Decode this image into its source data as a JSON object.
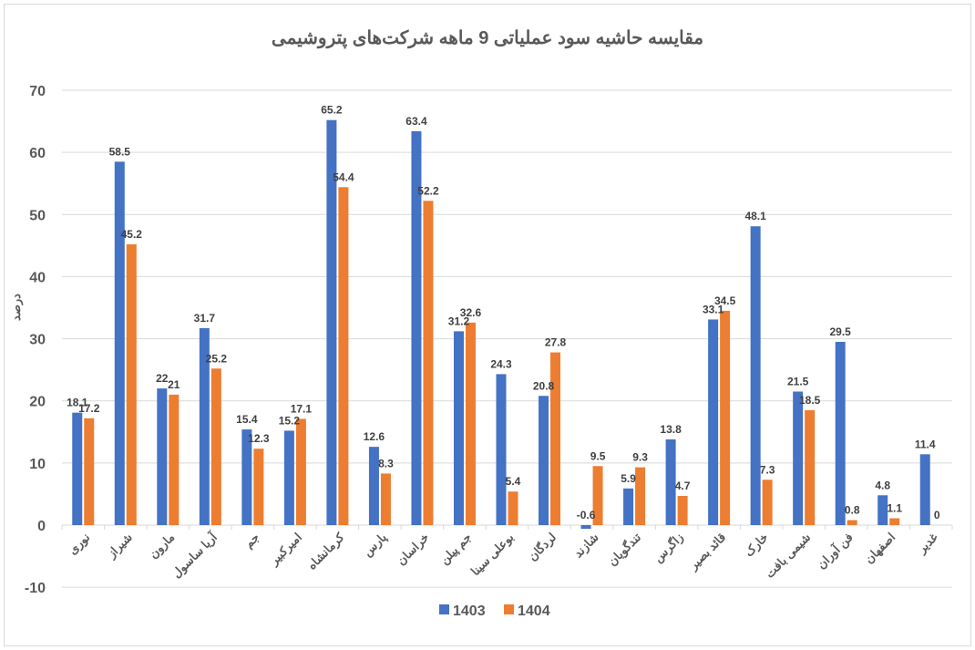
{
  "chart_data": {
    "type": "bar",
    "title": "مقایسه حاشیه سود عملیاتی 9 ماهه شرکت‌های پتروشیمی",
    "xlabel": "",
    "ylabel": "درصد",
    "ylim": [
      -10,
      70
    ],
    "yticks": [
      -10,
      0,
      10,
      20,
      30,
      40,
      50,
      60,
      70
    ],
    "grid": true,
    "legend_position": "bottom",
    "categories": [
      "نوری",
      "شیراز",
      "مارون",
      "آریا ساسول",
      "جم",
      "امیرکبیر",
      "کرمانشاه",
      "پارس",
      "خراسان",
      "جم پیلن",
      "بوعلی سینا",
      "لردگان",
      "شازند",
      "تندگویان",
      "زاگرس",
      "قائد بصیر",
      "خارک",
      "شیمی بافت",
      "فن آوران",
      "اصفهان",
      "غدیر"
    ],
    "series": [
      {
        "name": "1403",
        "color": "#4472C4",
        "values": [
          18.1,
          58.5,
          22,
          31.7,
          15.4,
          15.2,
          65.2,
          12.6,
          63.4,
          31.2,
          24.3,
          20.8,
          -0.6,
          5.9,
          13.8,
          33.1,
          48.1,
          21.5,
          29.5,
          4.8,
          11.4
        ]
      },
      {
        "name": "1404",
        "color": "#ED7D31",
        "values": [
          17.2,
          45.2,
          21,
          25.2,
          12.3,
          17.1,
          54.4,
          8.3,
          52.2,
          32.6,
          5.4,
          27.8,
          9.5,
          9.3,
          4.7,
          34.5,
          7.3,
          18.5,
          0.8,
          1.1,
          0
        ]
      }
    ]
  }
}
